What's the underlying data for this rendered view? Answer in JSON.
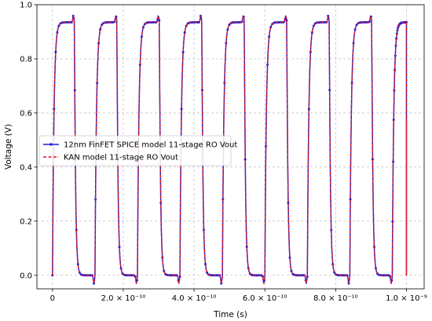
{
  "chart_data": {
    "type": "line",
    "xlabel": "Time (s)",
    "ylabel": "Voltage (V)",
    "xlim": [
      -4.4e-11,
      1.05e-09
    ],
    "ylim": [
      -0.05,
      1.0
    ],
    "grid": true,
    "legend_position": "center-left",
    "x_ticks": [
      {
        "value": 0,
        "label": "0"
      },
      {
        "value": 2e-10,
        "label": "2.0 × 10⁻¹⁰"
      },
      {
        "value": 4e-10,
        "label": "4.0 × 10⁻¹⁰"
      },
      {
        "value": 6e-10,
        "label": "6.0 × 10⁻¹⁰"
      },
      {
        "value": 8e-10,
        "label": "8.0 × 10⁻¹⁰"
      },
      {
        "value": 1e-09,
        "label": "1.0 × 10⁻⁹"
      }
    ],
    "y_ticks": [
      {
        "value": 0,
        "label": "0.0"
      },
      {
        "value": 0.2,
        "label": "0.2"
      },
      {
        "value": 0.4,
        "label": "0.4"
      },
      {
        "value": 0.6,
        "label": "0.6"
      },
      {
        "value": 0.8,
        "label": "0.8"
      },
      {
        "value": 1.0,
        "label": "1.0"
      }
    ],
    "waveform": {
      "period": 1.2e-10,
      "rise_start": 0,
      "high_level": 0.935,
      "peak_level": 0.96,
      "high_duration": 6.2e-11,
      "low_level": 0.0,
      "undershoot": -0.03,
      "end_time": 1e-09,
      "end_value": 0.58
    },
    "series": [
      {
        "name": "12nm FinFET SPICE model 11-stage RO Vout",
        "color": "#1f1fd6",
        "style": "solid",
        "marker": "dot"
      },
      {
        "name": "KAN model 11-stage RO Vout",
        "color": "#e8141e",
        "style": "dashed",
        "marker": "none"
      }
    ]
  }
}
